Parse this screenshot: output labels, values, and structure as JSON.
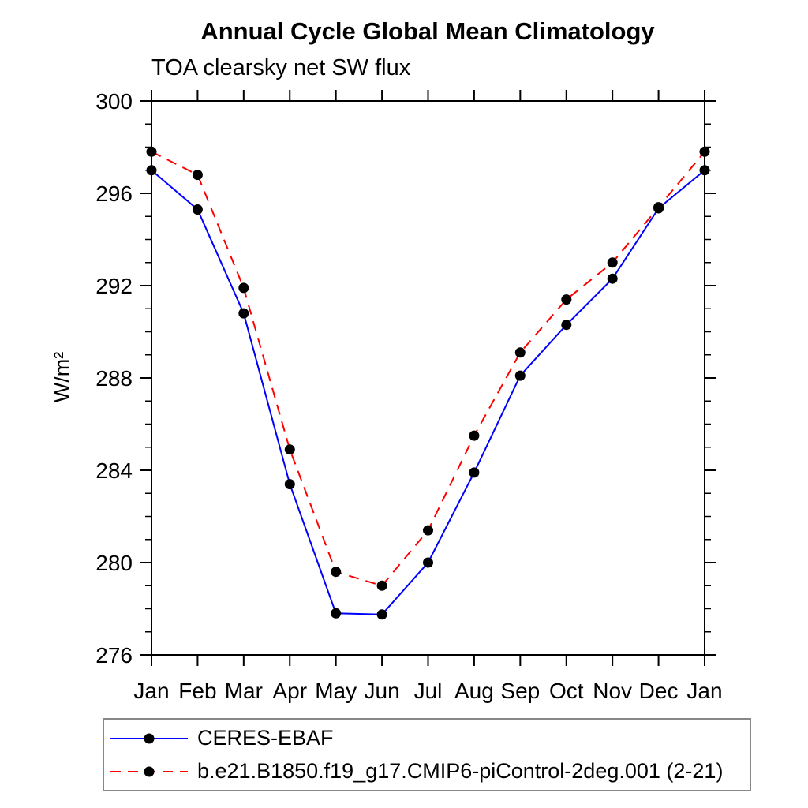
{
  "chart_data": {
    "type": "line",
    "title": "Annual Cycle Global Mean Climatology",
    "subtitle": "TOA clearsky net SW flux",
    "ylabel": "W/m²",
    "xlabel": "",
    "categories": [
      "Jan",
      "Feb",
      "Mar",
      "Apr",
      "May",
      "Jun",
      "Jul",
      "Aug",
      "Sep",
      "Oct",
      "Nov",
      "Dec",
      "Jan"
    ],
    "ylim": [
      276,
      300
    ],
    "ytick_major_interval": 4,
    "ytick_minor_interval": 1,
    "ytick_major_labels": [
      "276",
      "280",
      "284",
      "288",
      "292",
      "296",
      "300"
    ],
    "grid": false,
    "legend_position": "bottom",
    "axis_color": "#000000",
    "marker_shape": "filled-circle",
    "series": [
      {
        "name": "CERES-EBAF",
        "color": "#0000ff",
        "line_style": "solid",
        "marker_color": "#000000",
        "values": [
          297.0,
          295.3,
          290.8,
          283.4,
          277.8,
          277.75,
          280.0,
          283.9,
          288.1,
          290.3,
          292.3,
          295.35,
          297.0
        ]
      },
      {
        "name": "b.e21.B1850.f19_g17.CMIP6-piControl-2deg.001 (2-21)",
        "color": "#ff0000",
        "line_style": "dashed",
        "marker_color": "#000000",
        "values": [
          297.8,
          296.8,
          291.9,
          284.9,
          279.6,
          279.0,
          281.4,
          285.5,
          289.1,
          291.4,
          293.0,
          295.4,
          297.8
        ]
      }
    ]
  }
}
